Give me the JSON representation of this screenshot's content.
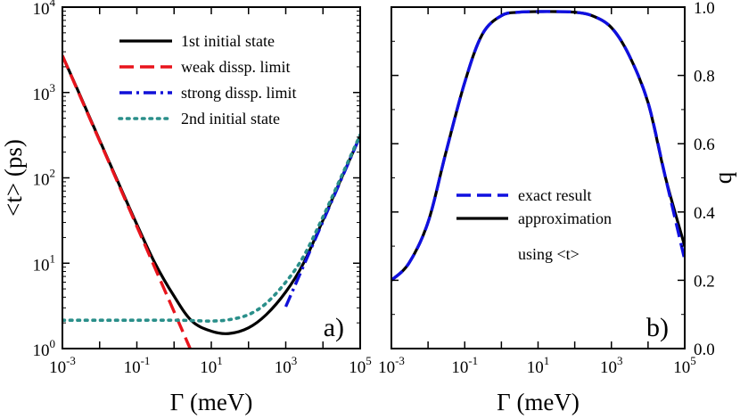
{
  "chart_data": [
    {
      "type": "line",
      "panel_label": "a)",
      "xlabel": "Γ (meV)",
      "ylabel": "<t> (ps)",
      "x_scale": "log",
      "y_scale": "log",
      "xlim": [
        0.001,
        100000
      ],
      "ylim": [
        1,
        10000
      ],
      "x_ticks": [
        {
          "base": "10",
          "exp": "-3"
        },
        {
          "base": "10",
          "exp": "-1"
        },
        {
          "base": "10",
          "exp": "1"
        },
        {
          "base": "10",
          "exp": "3"
        },
        {
          "base": "10",
          "exp": "5"
        }
      ],
      "y_ticks": [
        {
          "base": "10",
          "exp": "0"
        },
        {
          "base": "10",
          "exp": "1"
        },
        {
          "base": "10",
          "exp": "2"
        },
        {
          "base": "10",
          "exp": "3"
        },
        {
          "base": "10",
          "exp": "4"
        }
      ],
      "legend_position": "top-right",
      "series": [
        {
          "name": "1st initial state",
          "color": "#000000",
          "style": "solid",
          "x": [
            0.001,
            0.003,
            0.01,
            0.03,
            0.1,
            0.3,
            1,
            3,
            10,
            30,
            100,
            300,
            1000,
            3000,
            10000,
            30000,
            100000
          ],
          "y": [
            2700,
            920,
            275,
            93,
            28.5,
            10.2,
            4.1,
            2.1,
            1.6,
            1.5,
            1.75,
            2.5,
            4.6,
            10,
            32,
            95,
            310
          ]
        },
        {
          "name": "weak dissp. limit",
          "color": "#e8141c",
          "style": "dash",
          "x": [
            0.001,
            0.01,
            0.1,
            1,
            10
          ],
          "y": [
            2700,
            270,
            27,
            2.7,
            0.27
          ]
        },
        {
          "name": "strong dissp. limit",
          "color": "#1010d8",
          "style": "dashdot",
          "x": [
            1000,
            10000,
            100000
          ],
          "y": [
            3.1,
            31,
            310
          ]
        },
        {
          "name": "2nd initial state",
          "color": "#2a8f8a",
          "style": "dot",
          "x": [
            0.001,
            0.01,
            0.1,
            1,
            3,
            10,
            30,
            100,
            300,
            1000,
            3000,
            10000,
            30000,
            100000
          ],
          "y": [
            2.15,
            2.15,
            2.15,
            2.15,
            2.13,
            2.1,
            2.18,
            2.5,
            3.4,
            6.0,
            12,
            35,
            100,
            320
          ]
        }
      ]
    },
    {
      "type": "line",
      "panel_label": "b)",
      "xlabel": "Γ (meV)",
      "ylabel": "q",
      "x_scale": "log",
      "y_scale": "linear",
      "xlim": [
        0.001,
        100000
      ],
      "ylim": [
        0.0,
        1.0
      ],
      "x_ticks": [
        {
          "base": "10",
          "exp": "-3"
        },
        {
          "base": "10",
          "exp": "-1"
        },
        {
          "base": "10",
          "exp": "1"
        },
        {
          "base": "10",
          "exp": "3"
        },
        {
          "base": "10",
          "exp": "5"
        }
      ],
      "y_ticks": [
        "0.0",
        "0.2",
        "0.4",
        "0.6",
        "0.8",
        "1.0"
      ],
      "y_axis_side": "right",
      "legend_position": "center-right",
      "legend_note": "using <t>",
      "series": [
        {
          "name": "exact result",
          "color": "#1010e0",
          "style": "dash",
          "x": [
            0.001,
            0.003,
            0.01,
            0.03,
            0.1,
            0.3,
            1,
            3,
            10,
            30,
            100,
            300,
            1000,
            3000,
            10000,
            30000,
            100000
          ],
          "y": [
            0.2,
            0.25,
            0.37,
            0.57,
            0.78,
            0.92,
            0.975,
            0.985,
            0.987,
            0.987,
            0.985,
            0.975,
            0.94,
            0.86,
            0.72,
            0.5,
            0.26
          ]
        },
        {
          "name": "approximation",
          "color": "#000000",
          "style": "solid",
          "x": [
            0.001,
            0.003,
            0.01,
            0.03,
            0.1,
            0.3,
            1,
            3,
            10,
            30,
            100,
            300,
            1000,
            3000,
            10000,
            30000,
            100000
          ],
          "y": [
            0.2,
            0.25,
            0.37,
            0.57,
            0.78,
            0.92,
            0.975,
            0.985,
            0.987,
            0.987,
            0.985,
            0.975,
            0.94,
            0.86,
            0.72,
            0.5,
            0.3
          ]
        }
      ]
    }
  ]
}
